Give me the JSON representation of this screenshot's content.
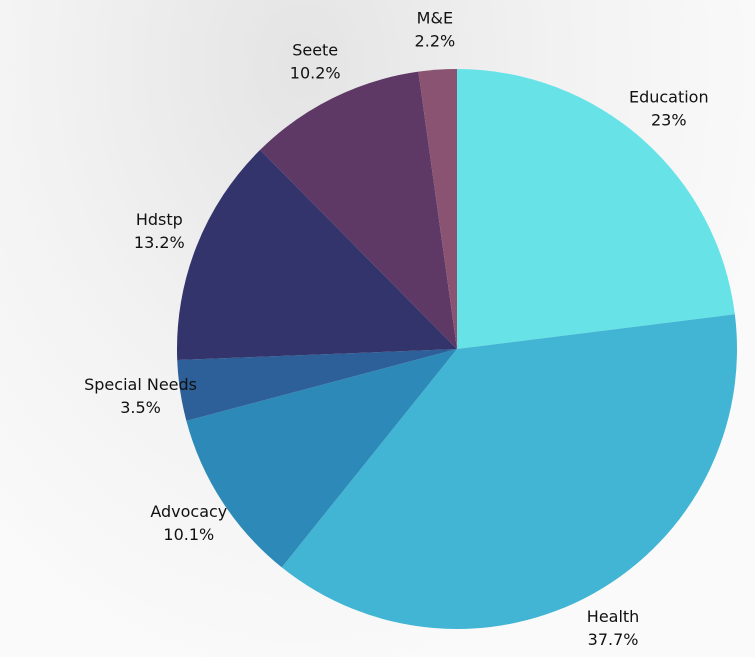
{
  "chart_data": {
    "type": "pie",
    "categories": [
      "Education",
      "Health",
      "Advocacy",
      "Special Needs",
      "Hdstp",
      "Seete",
      "M&E"
    ],
    "values": [
      23,
      37.7,
      10.1,
      3.5,
      13.2,
      10.2,
      2.2
    ],
    "value_labels": [
      "23%",
      "37.7%",
      "10.1%",
      "3.5%",
      "13.2%",
      "10.2%",
      "2.2%"
    ],
    "colors": [
      "#67e3e8",
      "#42b5d4",
      "#2d8ab8",
      "#2d5f98",
      "#33346b",
      "#5e3966",
      "#8a5372"
    ]
  }
}
